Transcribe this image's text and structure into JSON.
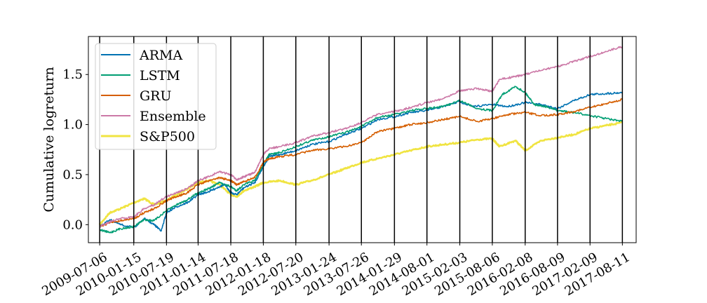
{
  "chart_data": {
    "type": "line",
    "title": "",
    "xlabel": "",
    "ylabel": "Cumulative logreturn",
    "x_ticks": [
      "2009-07-06",
      "2010-01-15",
      "2010-07-19",
      "2011-01-14",
      "2011-07-18",
      "2012-01-18",
      "2012-07-20",
      "2013-01-24",
      "2013-07-26",
      "2014-01-29",
      "2014-08-01",
      "2015-02-03",
      "2015-08-06",
      "2016-02-08",
      "2016-08-09",
      "2017-02-09",
      "2017-08-11"
    ],
    "y_ticks": [
      0.0,
      0.5,
      1.0,
      1.5
    ],
    "y_tick_labels": [
      "0.0",
      "0.5",
      "1.0",
      "1.5"
    ],
    "ylim": [
      -0.18,
      1.88
    ],
    "xlim": [
      "2009-05-03",
      "2017-10-28"
    ],
    "vertical_lines_at_ticks": true,
    "grid": false,
    "legend_position": "top-left",
    "series": [
      {
        "name": "ARMA",
        "color": "#0072b2",
        "points": [
          [
            "2009-07-06",
            -0.02
          ],
          [
            "2009-09-01",
            0.05
          ],
          [
            "2009-11-01",
            0.0
          ],
          [
            "2010-01-15",
            -0.03
          ],
          [
            "2010-03-15",
            0.06
          ],
          [
            "2010-05-10",
            0.0
          ],
          [
            "2010-06-20",
            -0.06
          ],
          [
            "2010-07-19",
            0.12
          ],
          [
            "2010-09-15",
            0.18
          ],
          [
            "2010-11-15",
            0.22
          ],
          [
            "2011-01-14",
            0.3
          ],
          [
            "2011-03-15",
            0.33
          ],
          [
            "2011-05-15",
            0.38
          ],
          [
            "2011-06-15",
            0.4
          ],
          [
            "2011-07-18",
            0.32
          ],
          [
            "2011-08-20",
            0.3
          ],
          [
            "2011-10-01",
            0.37
          ],
          [
            "2011-12-01",
            0.42
          ],
          [
            "2012-01-18",
            0.58
          ],
          [
            "2012-02-20",
            0.68
          ],
          [
            "2012-04-20",
            0.7
          ],
          [
            "2012-07-20",
            0.74
          ],
          [
            "2012-10-15",
            0.8
          ],
          [
            "2013-01-24",
            0.83
          ],
          [
            "2013-04-25",
            0.9
          ],
          [
            "2013-07-26",
            0.96
          ],
          [
            "2013-10-25",
            1.05
          ],
          [
            "2014-01-29",
            1.08
          ],
          [
            "2014-04-30",
            1.12
          ],
          [
            "2014-08-01",
            1.14
          ],
          [
            "2014-11-01",
            1.18
          ],
          [
            "2015-02-03",
            1.23
          ],
          [
            "2015-04-15",
            1.18
          ],
          [
            "2015-08-06",
            1.2
          ],
          [
            "2015-11-01",
            1.18
          ],
          [
            "2016-02-08",
            1.22
          ],
          [
            "2016-05-09",
            1.2
          ],
          [
            "2016-08-09",
            1.16
          ],
          [
            "2016-11-09",
            1.24
          ],
          [
            "2017-02-09",
            1.3
          ],
          [
            "2017-05-11",
            1.31
          ],
          [
            "2017-08-11",
            1.32
          ]
        ]
      },
      {
        "name": "LSTM",
        "color": "#009e73",
        "points": [
          [
            "2009-07-06",
            -0.05
          ],
          [
            "2009-09-01",
            -0.08
          ],
          [
            "2009-11-01",
            -0.04
          ],
          [
            "2010-01-15",
            -0.02
          ],
          [
            "2010-03-15",
            0.05
          ],
          [
            "2010-05-10",
            0.04
          ],
          [
            "2010-07-19",
            0.14
          ],
          [
            "2010-09-15",
            0.2
          ],
          [
            "2010-11-15",
            0.25
          ],
          [
            "2011-01-14",
            0.32
          ],
          [
            "2011-03-15",
            0.36
          ],
          [
            "2011-05-15",
            0.42
          ],
          [
            "2011-07-18",
            0.38
          ],
          [
            "2011-08-20",
            0.34
          ],
          [
            "2011-10-01",
            0.4
          ],
          [
            "2011-12-01",
            0.44
          ],
          [
            "2012-01-18",
            0.6
          ],
          [
            "2012-02-20",
            0.7
          ],
          [
            "2012-04-20",
            0.72
          ],
          [
            "2012-07-20",
            0.78
          ],
          [
            "2012-10-15",
            0.84
          ],
          [
            "2013-01-24",
            0.88
          ],
          [
            "2013-04-25",
            0.92
          ],
          [
            "2013-07-26",
            0.98
          ],
          [
            "2013-10-25",
            1.07
          ],
          [
            "2014-01-29",
            1.1
          ],
          [
            "2014-04-30",
            1.14
          ],
          [
            "2014-08-01",
            1.16
          ],
          [
            "2014-11-01",
            1.18
          ],
          [
            "2015-02-03",
            1.24
          ],
          [
            "2015-05-15",
            1.16
          ],
          [
            "2015-08-06",
            1.14
          ],
          [
            "2015-10-01",
            1.3
          ],
          [
            "2015-12-15",
            1.38
          ],
          [
            "2016-02-08",
            1.32
          ],
          [
            "2016-04-01",
            1.2
          ],
          [
            "2016-06-01",
            1.18
          ],
          [
            "2016-08-09",
            1.14
          ],
          [
            "2016-11-09",
            1.12
          ],
          [
            "2017-02-09",
            1.09
          ],
          [
            "2017-05-11",
            1.06
          ],
          [
            "2017-08-11",
            1.03
          ]
        ]
      },
      {
        "name": "GRU",
        "color": "#d55e00",
        "points": [
          [
            "2009-07-06",
            -0.02
          ],
          [
            "2009-09-01",
            0.02
          ],
          [
            "2009-11-01",
            0.04
          ],
          [
            "2010-01-15",
            0.06
          ],
          [
            "2010-03-15",
            0.12
          ],
          [
            "2010-05-10",
            0.16
          ],
          [
            "2010-07-19",
            0.24
          ],
          [
            "2010-09-15",
            0.28
          ],
          [
            "2010-11-15",
            0.32
          ],
          [
            "2011-01-14",
            0.4
          ],
          [
            "2011-03-15",
            0.44
          ],
          [
            "2011-05-15",
            0.47
          ],
          [
            "2011-07-18",
            0.44
          ],
          [
            "2011-08-20",
            0.4
          ],
          [
            "2011-10-01",
            0.43
          ],
          [
            "2011-12-01",
            0.47
          ],
          [
            "2012-01-18",
            0.62
          ],
          [
            "2012-02-20",
            0.66
          ],
          [
            "2012-04-20",
            0.68
          ],
          [
            "2012-07-20",
            0.7
          ],
          [
            "2012-10-15",
            0.74
          ],
          [
            "2013-01-24",
            0.76
          ],
          [
            "2013-04-25",
            0.78
          ],
          [
            "2013-07-26",
            0.82
          ],
          [
            "2013-10-25",
            0.93
          ],
          [
            "2014-01-29",
            0.96
          ],
          [
            "2014-04-30",
            1.0
          ],
          [
            "2014-08-01",
            1.02
          ],
          [
            "2014-11-01",
            1.05
          ],
          [
            "2015-02-03",
            1.08
          ],
          [
            "2015-05-15",
            1.03
          ],
          [
            "2015-08-06",
            1.06
          ],
          [
            "2015-11-01",
            1.1
          ],
          [
            "2016-02-08",
            1.12
          ],
          [
            "2016-05-09",
            1.09
          ],
          [
            "2016-08-09",
            1.1
          ],
          [
            "2016-11-09",
            1.13
          ],
          [
            "2017-02-09",
            1.17
          ],
          [
            "2017-05-11",
            1.21
          ],
          [
            "2017-08-11",
            1.25
          ]
        ]
      },
      {
        "name": "Ensemble",
        "color": "#cc79a7",
        "points": [
          [
            "2009-07-06",
            -0.02
          ],
          [
            "2009-09-01",
            0.03
          ],
          [
            "2009-11-01",
            0.06
          ],
          [
            "2010-01-15",
            0.08
          ],
          [
            "2010-03-15",
            0.16
          ],
          [
            "2010-05-10",
            0.2
          ],
          [
            "2010-07-19",
            0.28
          ],
          [
            "2010-09-15",
            0.32
          ],
          [
            "2010-11-15",
            0.36
          ],
          [
            "2011-01-14",
            0.44
          ],
          [
            "2011-03-15",
            0.48
          ],
          [
            "2011-05-15",
            0.53
          ],
          [
            "2011-07-18",
            0.5
          ],
          [
            "2011-08-20",
            0.45
          ],
          [
            "2011-10-01",
            0.48
          ],
          [
            "2011-12-01",
            0.52
          ],
          [
            "2012-01-18",
            0.7
          ],
          [
            "2012-02-20",
            0.76
          ],
          [
            "2012-04-20",
            0.78
          ],
          [
            "2012-07-20",
            0.82
          ],
          [
            "2012-10-15",
            0.88
          ],
          [
            "2013-01-24",
            0.92
          ],
          [
            "2013-04-25",
            0.96
          ],
          [
            "2013-07-26",
            1.02
          ],
          [
            "2013-10-25",
            1.1
          ],
          [
            "2014-01-29",
            1.13
          ],
          [
            "2014-04-30",
            1.17
          ],
          [
            "2014-08-01",
            1.22
          ],
          [
            "2014-11-01",
            1.26
          ],
          [
            "2015-02-03",
            1.34
          ],
          [
            "2015-05-15",
            1.36
          ],
          [
            "2015-08-06",
            1.33
          ],
          [
            "2015-09-15",
            1.45
          ],
          [
            "2015-12-15",
            1.48
          ],
          [
            "2016-02-08",
            1.5
          ],
          [
            "2016-05-09",
            1.54
          ],
          [
            "2016-08-09",
            1.58
          ],
          [
            "2016-11-09",
            1.63
          ],
          [
            "2017-02-09",
            1.68
          ],
          [
            "2017-05-11",
            1.73
          ],
          [
            "2017-08-11",
            1.78
          ]
        ]
      },
      {
        "name": "S&P500",
        "color": "#f0e442",
        "points": [
          [
            "2009-07-06",
            0.0
          ],
          [
            "2009-09-01",
            0.12
          ],
          [
            "2009-11-01",
            0.16
          ],
          [
            "2010-01-15",
            0.22
          ],
          [
            "2010-03-15",
            0.26
          ],
          [
            "2010-05-10",
            0.2
          ],
          [
            "2010-07-19",
            0.24
          ],
          [
            "2010-09-15",
            0.3
          ],
          [
            "2010-11-15",
            0.36
          ],
          [
            "2011-01-14",
            0.42
          ],
          [
            "2011-03-15",
            0.44
          ],
          [
            "2011-05-15",
            0.4
          ],
          [
            "2011-07-18",
            0.3
          ],
          [
            "2011-08-20",
            0.28
          ],
          [
            "2011-10-01",
            0.34
          ],
          [
            "2011-12-01",
            0.38
          ],
          [
            "2012-01-18",
            0.42
          ],
          [
            "2012-04-20",
            0.44
          ],
          [
            "2012-07-20",
            0.4
          ],
          [
            "2012-10-15",
            0.44
          ],
          [
            "2013-01-24",
            0.5
          ],
          [
            "2013-04-25",
            0.56
          ],
          [
            "2013-07-26",
            0.62
          ],
          [
            "2013-10-25",
            0.66
          ],
          [
            "2014-01-29",
            0.7
          ],
          [
            "2014-04-30",
            0.74
          ],
          [
            "2014-08-01",
            0.78
          ],
          [
            "2014-11-01",
            0.8
          ],
          [
            "2015-02-03",
            0.82
          ],
          [
            "2015-05-15",
            0.85
          ],
          [
            "2015-08-06",
            0.86
          ],
          [
            "2015-09-15",
            0.78
          ],
          [
            "2015-12-15",
            0.84
          ],
          [
            "2016-02-08",
            0.74
          ],
          [
            "2016-05-09",
            0.84
          ],
          [
            "2016-08-09",
            0.87
          ],
          [
            "2016-11-09",
            0.9
          ],
          [
            "2017-02-09",
            0.96
          ],
          [
            "2017-05-11",
            0.99
          ],
          [
            "2017-08-11",
            1.02
          ]
        ]
      }
    ]
  }
}
